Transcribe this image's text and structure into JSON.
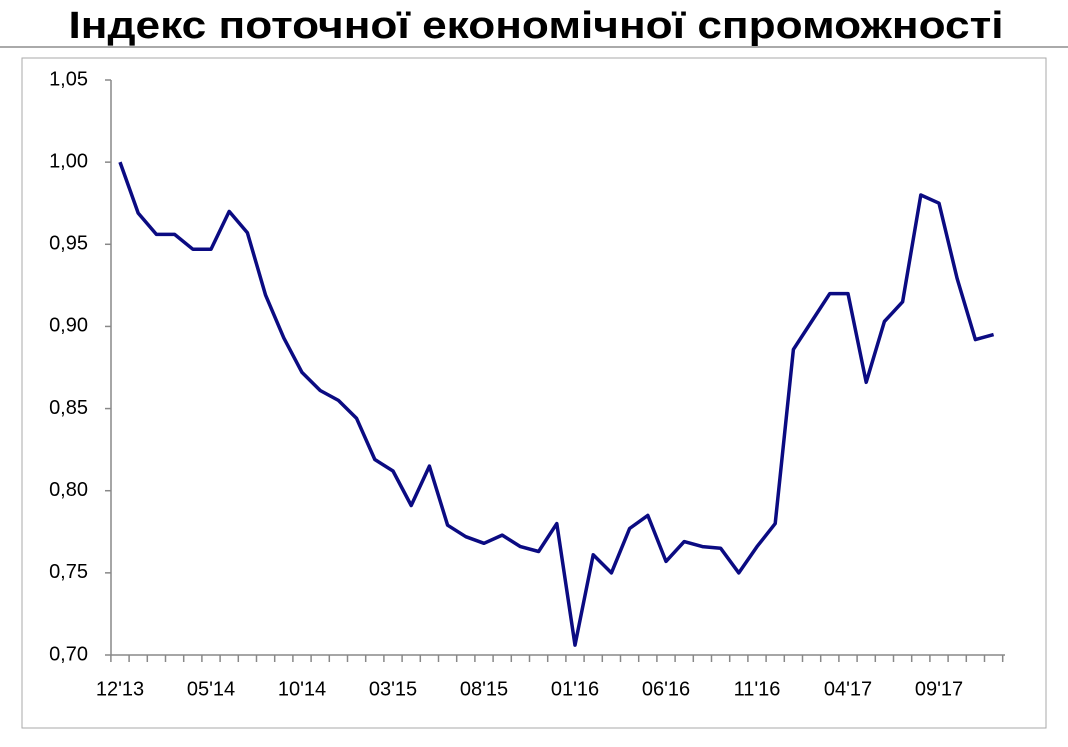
{
  "chart_data": {
    "type": "line",
    "title": "Індекс поточної економічної спроможності",
    "categories": [
      "12'13",
      null,
      null,
      null,
      null,
      "05'14",
      null,
      null,
      null,
      null,
      "10'14",
      null,
      null,
      null,
      null,
      "03'15",
      null,
      null,
      null,
      null,
      "08'15",
      null,
      null,
      null,
      null,
      "01'16",
      null,
      null,
      null,
      null,
      "06'16",
      null,
      null,
      null,
      null,
      "11'16",
      null,
      null,
      null,
      null,
      "04'17",
      null,
      null,
      null,
      null,
      "09'17",
      null,
      null,
      null
    ],
    "values": [
      1.0,
      0.969,
      0.956,
      0.956,
      0.947,
      0.947,
      0.97,
      0.957,
      0.919,
      0.893,
      0.872,
      0.861,
      0.855,
      0.844,
      0.819,
      0.812,
      0.791,
      0.815,
      0.779,
      0.772,
      0.768,
      0.773,
      0.766,
      0.763,
      0.78,
      0.706,
      0.761,
      0.75,
      0.777,
      0.785,
      0.757,
      0.769,
      0.766,
      0.765,
      0.75,
      0.766,
      0.78,
      0.886,
      0.903,
      0.92,
      0.92,
      0.866,
      0.903,
      0.915,
      0.98,
      0.975,
      0.929,
      0.892,
      0.895
    ],
    "color": "#0b0b82",
    "ylim": [
      0.7,
      1.05
    ],
    "yticks": [
      {
        "value": 0.7,
        "label": "0,70"
      },
      {
        "value": 0.75,
        "label": "0,75"
      },
      {
        "value": 0.8,
        "label": "0,80"
      },
      {
        "value": 0.85,
        "label": "0,85"
      },
      {
        "value": 0.9,
        "label": "0,90"
      },
      {
        "value": 0.95,
        "label": "0,95"
      },
      {
        "value": 1.0,
        "label": "1,00"
      },
      {
        "value": 1.05,
        "label": "1,05"
      }
    ],
    "grid": false
  }
}
